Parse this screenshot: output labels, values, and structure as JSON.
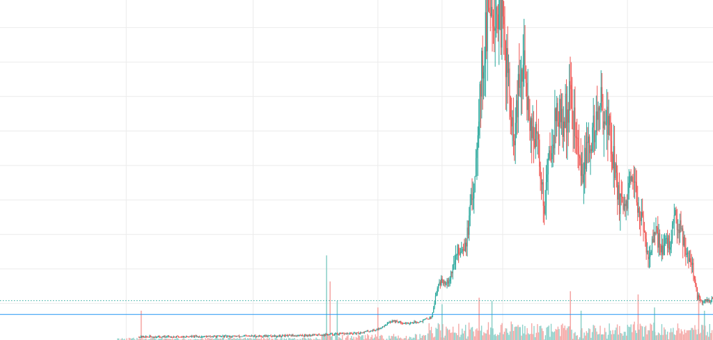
{
  "chart_data": {
    "type": "candlestick",
    "title": "",
    "xlabel": "",
    "ylabel": "",
    "grid": true,
    "legend": "none",
    "xlim": [
      0,
      1000
    ],
    "ylim": [
      0,
      100
    ],
    "y_gridlines": [
      10,
      20,
      30,
      40,
      50,
      60,
      70,
      80,
      90,
      100
    ],
    "x_gridlines": [
      177,
      355,
      530,
      620,
      705,
      880
    ],
    "colors": {
      "up": "#26a69a",
      "down": "#ef5350",
      "volume_up": "#8fd1ca",
      "volume_down": "#f5a8a6",
      "grid": "#ebebeb",
      "price_line": "#2196f3",
      "dotted_line": "#26a69a"
    },
    "reference_lines": [
      {
        "style": "dotted",
        "value": 10.8
      },
      {
        "style": "solid",
        "value": 6.8
      }
    ],
    "close_series": [
      {
        "x": 195,
        "y": 0.3
      },
      {
        "x": 300,
        "y": 0.4
      },
      {
        "x": 400,
        "y": 0.6
      },
      {
        "x": 450,
        "y": 0.9
      },
      {
        "x": 470,
        "y": 1.1
      },
      {
        "x": 500,
        "y": 1.3
      },
      {
        "x": 530,
        "y": 2.5
      },
      {
        "x": 550,
        "y": 5.0
      },
      {
        "x": 570,
        "y": 4.2
      },
      {
        "x": 590,
        "y": 4.8
      },
      {
        "x": 605,
        "y": 6.0
      },
      {
        "x": 615,
        "y": 16.0
      },
      {
        "x": 630,
        "y": 17.0
      },
      {
        "x": 640,
        "y": 24.0
      },
      {
        "x": 655,
        "y": 29.0
      },
      {
        "x": 665,
        "y": 45.0
      },
      {
        "x": 672,
        "y": 70.0
      },
      {
        "x": 680,
        "y": 85.0
      },
      {
        "x": 688,
        "y": 99.0
      },
      {
        "x": 700,
        "y": 95.0
      },
      {
        "x": 710,
        "y": 82.0
      },
      {
        "x": 720,
        "y": 55.0
      },
      {
        "x": 728,
        "y": 72.0
      },
      {
        "x": 735,
        "y": 78.0
      },
      {
        "x": 745,
        "y": 62.0
      },
      {
        "x": 755,
        "y": 55.0
      },
      {
        "x": 763,
        "y": 38.0
      },
      {
        "x": 770,
        "y": 52.0
      },
      {
        "x": 780,
        "y": 65.0
      },
      {
        "x": 790,
        "y": 62.0
      },
      {
        "x": 800,
        "y": 70.0
      },
      {
        "x": 808,
        "y": 58.0
      },
      {
        "x": 815,
        "y": 48.0
      },
      {
        "x": 825,
        "y": 54.0
      },
      {
        "x": 835,
        "y": 62.0
      },
      {
        "x": 845,
        "y": 68.0
      },
      {
        "x": 855,
        "y": 60.0
      },
      {
        "x": 862,
        "y": 50.0
      },
      {
        "x": 868,
        "y": 40.0
      },
      {
        "x": 875,
        "y": 36.0
      },
      {
        "x": 885,
        "y": 44.0
      },
      {
        "x": 895,
        "y": 40.0
      },
      {
        "x": 903,
        "y": 30.0
      },
      {
        "x": 910,
        "y": 24.0
      },
      {
        "x": 920,
        "y": 30.0
      },
      {
        "x": 930,
        "y": 26.0
      },
      {
        "x": 940,
        "y": 28.0
      },
      {
        "x": 948,
        "y": 35.0
      },
      {
        "x": 955,
        "y": 32.0
      },
      {
        "x": 962,
        "y": 26.0
      },
      {
        "x": 970,
        "y": 22.0
      },
      {
        "x": 978,
        "y": 12.0
      },
      {
        "x": 985,
        "y": 10.0
      },
      {
        "x": 992,
        "y": 11.0
      },
      {
        "x": 1000,
        "y": 10.8
      }
    ],
    "volume_spikes": [
      {
        "x": 198,
        "v": 9.0
      },
      {
        "x": 458,
        "v": 26.0
      },
      {
        "x": 463,
        "v": 18.0
      },
      {
        "x": 473,
        "v": 12.0
      },
      {
        "x": 530,
        "v": 10.0
      },
      {
        "x": 620,
        "v": 11.0
      },
      {
        "x": 672,
        "v": 13.0
      },
      {
        "x": 690,
        "v": 12.0
      },
      {
        "x": 800,
        "v": 15.0
      },
      {
        "x": 815,
        "v": 9.0
      },
      {
        "x": 895,
        "v": 14.0
      },
      {
        "x": 918,
        "v": 10.0
      },
      {
        "x": 980,
        "v": 14.0
      },
      {
        "x": 988,
        "v": 9.0
      }
    ]
  }
}
